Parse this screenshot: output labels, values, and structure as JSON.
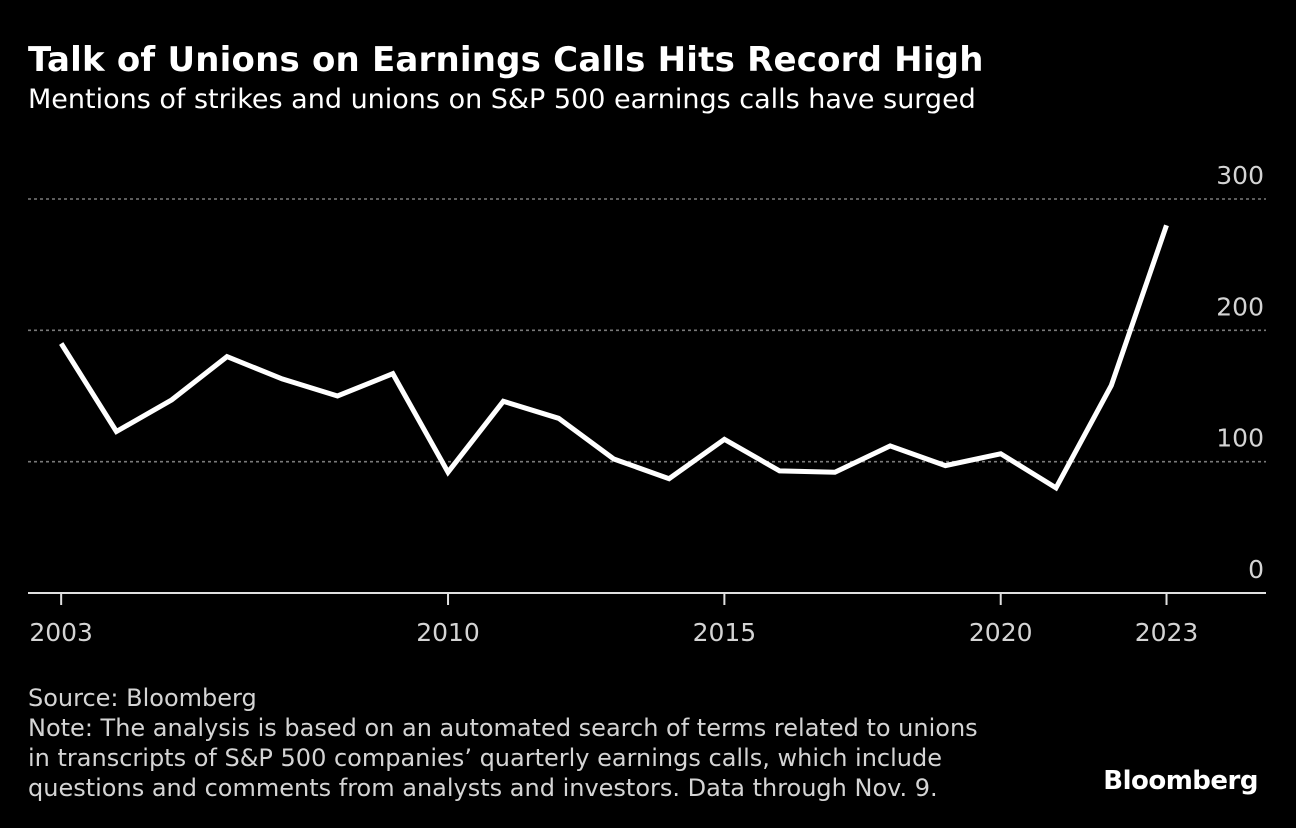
{
  "colors": {
    "background": "#000000",
    "line": "#ffffff",
    "grid": "#7a7a7a",
    "text": "#ffffff",
    "muted": "#d4d4d4"
  },
  "chart_data": {
    "type": "line",
    "title": "Talk of Unions on Earnings Calls Hits Record High",
    "subtitle": "Mentions of strikes and unions on S&P 500 earnings calls have surged",
    "xlabel": "",
    "ylabel": "",
    "x": [
      2003,
      2004,
      2005,
      2006,
      2007,
      2008,
      2009,
      2010,
      2011,
      2012,
      2013,
      2014,
      2015,
      2016,
      2017,
      2018,
      2019,
      2020,
      2021,
      2022,
      2023
    ],
    "series": [
      {
        "name": "Mentions",
        "values": [
          190,
          123,
          147,
          180,
          163,
          150,
          167,
          92,
          146,
          133,
          102,
          87,
          117,
          93,
          92,
          112,
          97,
          106,
          80,
          158,
          280
        ]
      }
    ],
    "xlim": [
      2002.4,
      2024.8
    ],
    "ylim": [
      0,
      300
    ],
    "yticks": [
      "0",
      "100",
      "200",
      "300"
    ],
    "ytick_values": [
      0,
      100,
      200,
      300
    ],
    "xticks": [
      "2003",
      "2010",
      "2015",
      "2020",
      "2023"
    ],
    "xtick_values": [
      2003,
      2010,
      2015,
      2020,
      2023
    ],
    "grid": true,
    "legend": "none"
  },
  "footer": {
    "source": "Source: Bloomberg",
    "note_lines": [
      "Note: The analysis is based on an automated search of terms related to unions",
      "in transcripts of S&P 500 companies’ quarterly earnings calls, which include",
      "questions and comments from analysts and investors. Data through Nov. 9."
    ],
    "brand": "Bloomberg"
  }
}
